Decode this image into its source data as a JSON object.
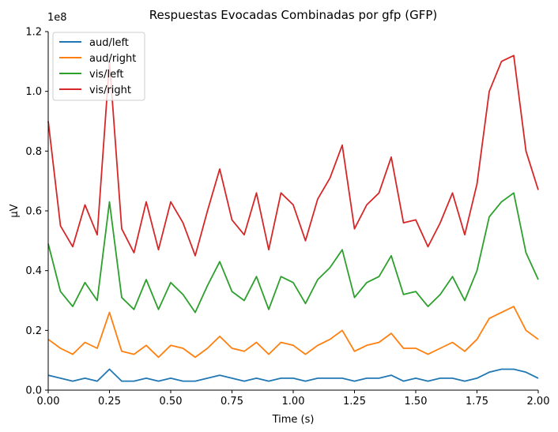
{
  "chart_data": {
    "type": "line",
    "title": "Respuestas Evocadas Combinadas por gfp (GFP)",
    "xlabel": "Time (s)",
    "ylabel": "µV",
    "y_offset_label": "1e8",
    "xlim": [
      0,
      2.0
    ],
    "ylim": [
      0,
      1.2
    ],
    "xticks": [
      "0.00",
      "0.25",
      "0.50",
      "0.75",
      "1.00",
      "1.25",
      "1.50",
      "1.75",
      "2.00"
    ],
    "yticks": [
      "0.0",
      "0.2",
      "0.4",
      "0.6",
      "0.8",
      "1.0",
      "1.2"
    ],
    "legend_position": "upper-left",
    "x": [
      0.0,
      0.05,
      0.1,
      0.15,
      0.2,
      0.25,
      0.3,
      0.35,
      0.4,
      0.45,
      0.5,
      0.55,
      0.6,
      0.65,
      0.7,
      0.75,
      0.8,
      0.85,
      0.9,
      0.95,
      1.0,
      1.05,
      1.1,
      1.15,
      1.2,
      1.25,
      1.3,
      1.35,
      1.4,
      1.45,
      1.5,
      1.55,
      1.6,
      1.65,
      1.7,
      1.75,
      1.8,
      1.85,
      1.9,
      1.95,
      2.0
    ],
    "series": [
      {
        "name": "aud/left",
        "color": "#1f77b4",
        "values": [
          0.05,
          0.04,
          0.03,
          0.04,
          0.03,
          0.07,
          0.03,
          0.03,
          0.04,
          0.03,
          0.04,
          0.03,
          0.03,
          0.04,
          0.05,
          0.04,
          0.03,
          0.04,
          0.03,
          0.04,
          0.04,
          0.03,
          0.04,
          0.04,
          0.04,
          0.03,
          0.04,
          0.04,
          0.05,
          0.03,
          0.04,
          0.03,
          0.04,
          0.04,
          0.03,
          0.04,
          0.06,
          0.07,
          0.07,
          0.06,
          0.04
        ]
      },
      {
        "name": "aud/right",
        "color": "#ff7f0e",
        "values": [
          0.17,
          0.14,
          0.12,
          0.16,
          0.14,
          0.26,
          0.13,
          0.12,
          0.15,
          0.11,
          0.15,
          0.14,
          0.11,
          0.14,
          0.18,
          0.14,
          0.13,
          0.16,
          0.12,
          0.16,
          0.15,
          0.12,
          0.15,
          0.17,
          0.2,
          0.13,
          0.15,
          0.16,
          0.19,
          0.14,
          0.14,
          0.12,
          0.14,
          0.16,
          0.13,
          0.17,
          0.24,
          0.26,
          0.28,
          0.2,
          0.17
        ]
      },
      {
        "name": "vis/left",
        "color": "#2ca02c",
        "values": [
          0.49,
          0.33,
          0.28,
          0.36,
          0.3,
          0.63,
          0.31,
          0.27,
          0.37,
          0.27,
          0.36,
          0.32,
          0.26,
          0.35,
          0.43,
          0.33,
          0.3,
          0.38,
          0.27,
          0.38,
          0.36,
          0.29,
          0.37,
          0.41,
          0.47,
          0.31,
          0.36,
          0.38,
          0.45,
          0.32,
          0.33,
          0.28,
          0.32,
          0.38,
          0.3,
          0.4,
          0.58,
          0.63,
          0.66,
          0.46,
          0.37
        ]
      },
      {
        "name": "vis/right",
        "color": "#d62728",
        "values": [
          0.9,
          0.55,
          0.48,
          0.62,
          0.52,
          1.1,
          0.54,
          0.46,
          0.63,
          0.47,
          0.63,
          0.56,
          0.45,
          0.6,
          0.74,
          0.57,
          0.52,
          0.66,
          0.47,
          0.66,
          0.62,
          0.5,
          0.64,
          0.71,
          0.82,
          0.54,
          0.62,
          0.66,
          0.78,
          0.56,
          0.57,
          0.48,
          0.56,
          0.66,
          0.52,
          0.69,
          1.0,
          1.1,
          1.12,
          0.8,
          0.67
        ]
      }
    ]
  }
}
